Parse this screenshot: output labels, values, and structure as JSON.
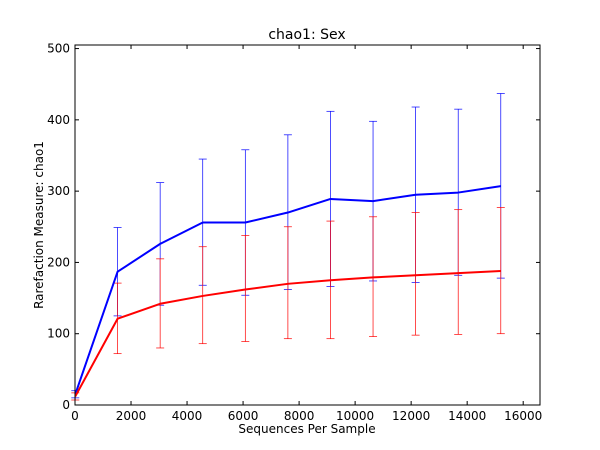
{
  "chart_data": {
    "type": "line",
    "title": "chao1: Sex",
    "xlabel": "Sequences Per Sample",
    "ylabel": "Rarefaction Measure: chao1",
    "xlim": [
      0,
      16600
    ],
    "ylim": [
      0,
      505
    ],
    "xticks": [
      0,
      2000,
      4000,
      6000,
      8000,
      10000,
      12000,
      14000,
      16000
    ],
    "yticks": [
      0,
      100,
      200,
      300,
      400,
      500
    ],
    "grid": false,
    "x": [
      10,
      1520,
      3040,
      4560,
      6080,
      7600,
      9120,
      10640,
      12160,
      13680,
      15200
    ],
    "series": [
      {
        "color": "#0000ff",
        "values": [
          15,
          187,
          226,
          256,
          256,
          270,
          289,
          286,
          295,
          298,
          307
        ],
        "err_low": [
          10,
          125,
          140,
          168,
          154,
          162,
          166,
          174,
          172,
          182,
          178
        ],
        "err_high": [
          20,
          249,
          312,
          345,
          358,
          379,
          412,
          398,
          418,
          415,
          437
        ]
      },
      {
        "color": "#ff0000",
        "values": [
          12,
          121,
          142,
          153,
          162,
          170,
          175,
          179,
          182,
          185,
          188
        ],
        "err_low": [
          7,
          72,
          80,
          86,
          89,
          93,
          93,
          96,
          98,
          99,
          100
        ],
        "err_high": [
          17,
          171,
          205,
          222,
          238,
          250,
          258,
          264,
          270,
          274,
          277
        ]
      }
    ]
  }
}
